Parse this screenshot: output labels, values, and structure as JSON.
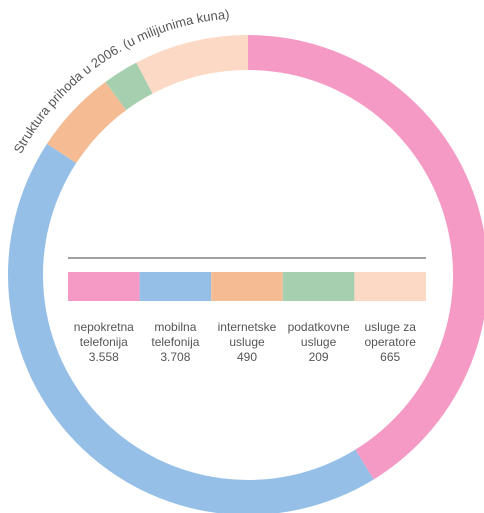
{
  "chart_data": {
    "type": "donut",
    "title": "Struktura prihoda u 2006. (u milijunima kuna)",
    "categories": [
      [
        "nepokretna",
        "telefonija"
      ],
      [
        "mobilna",
        "telefonija"
      ],
      [
        "internetske",
        "usluge"
      ],
      [
        "podatkovne",
        "usluge"
      ],
      [
        "usluge za",
        "operatore"
      ]
    ],
    "values": [
      3558,
      3708,
      490,
      209,
      665
    ],
    "value_labels": [
      "3.558",
      "3.708",
      "490",
      "209",
      "665"
    ],
    "colors": [
      "#f49ac4",
      "#95bfe6",
      "#f5bb93",
      "#a6cfb0",
      "#fcd9c4"
    ]
  }
}
